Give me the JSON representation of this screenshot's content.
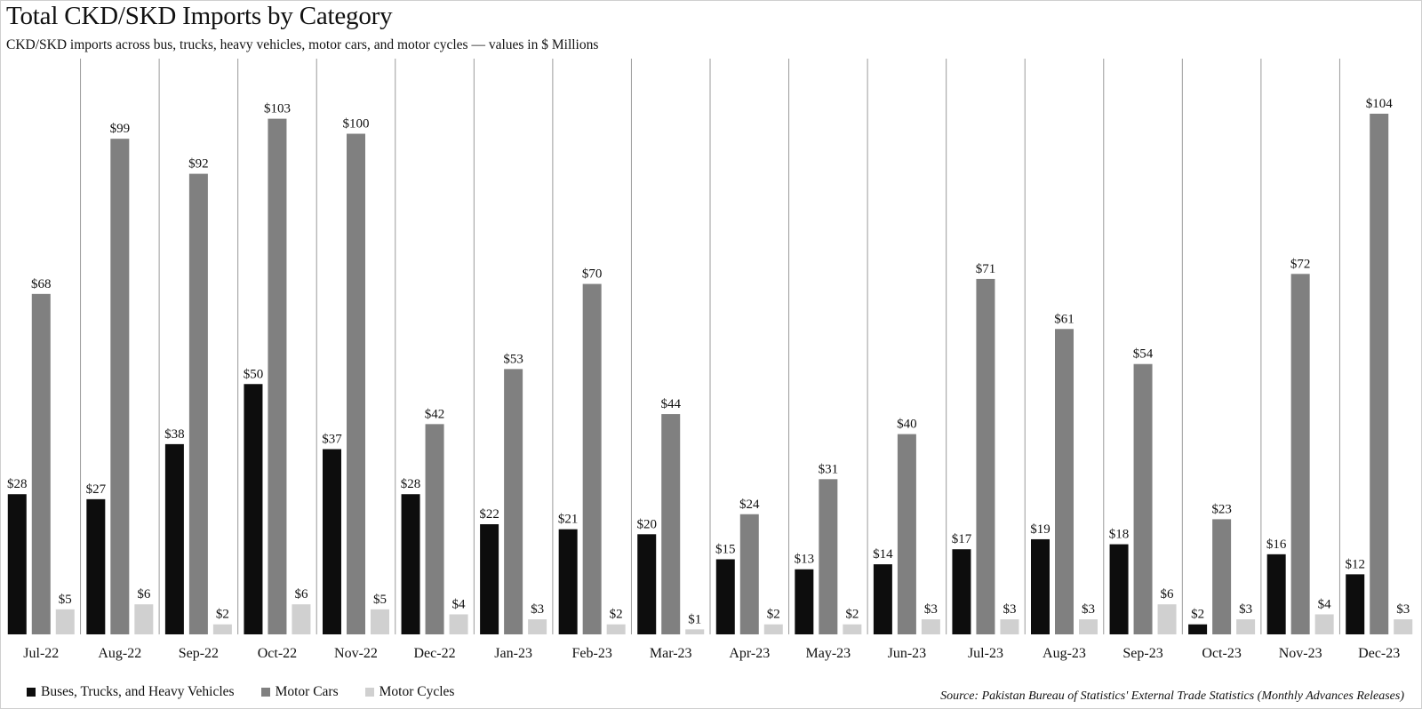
{
  "chart_data": {
    "type": "bar",
    "title": "Total CKD/SKD Imports by Category",
    "subtitle": "CKD/SKD imports across bus, trucks, heavy vehicles, motor cars, and motor cycles — values in $ Millions",
    "source": "Source: Pakistan Bureau of Statistics' External Trade Statistics  (Monthly Advances Releases)",
    "xlabel": "",
    "ylabel": "",
    "ylim": [
      0,
      115
    ],
    "grid": false,
    "legend_position": "bottom-left",
    "value_prefix": "$",
    "categories": [
      "Jul-22",
      "Aug-22",
      "Sep-22",
      "Oct-22",
      "Nov-22",
      "Dec-22",
      "Jan-23",
      "Feb-23",
      "Mar-23",
      "Apr-23",
      "May-23",
      "Jun-23",
      "Jul-23",
      "Aug-23",
      "Sep-23",
      "Oct-23",
      "Nov-23",
      "Dec-23"
    ],
    "series": [
      {
        "name": "Buses, Trucks, and Heavy Vehicles",
        "color": "#0d0d0d",
        "values": [
          28,
          27,
          38,
          50,
          37,
          28,
          22,
          21,
          20,
          15,
          13,
          14,
          17,
          19,
          18,
          2,
          16,
          12
        ]
      },
      {
        "name": "Motor Cars",
        "color": "#808080",
        "values": [
          68,
          99,
          92,
          103,
          100,
          42,
          53,
          70,
          44,
          24,
          31,
          40,
          71,
          61,
          54,
          23,
          72,
          104
        ]
      },
      {
        "name": "Motor Cycles",
        "color": "#d0d0d0",
        "values": [
          5,
          6,
          2,
          6,
          5,
          4,
          3,
          2,
          1,
          2,
          2,
          3,
          3,
          3,
          6,
          3,
          4,
          3
        ]
      }
    ]
  }
}
